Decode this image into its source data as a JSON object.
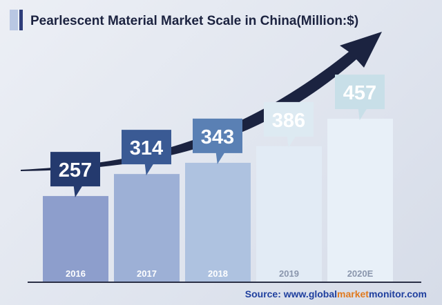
{
  "title": "Pearlescent Material Market Scale in China(Million:$)",
  "source": {
    "prefix": "Source: www.",
    "part1": "global",
    "part2": "market",
    "part3": "monitor",
    "suffix": ".com"
  },
  "colors": {
    "title": "#1c2340",
    "accent_bar": "#2e3d7a",
    "arrow": "#1b2340",
    "axis": "#2a2f45",
    "source_blue": "#1f3f9e",
    "source_orange": "#e07a1f"
  },
  "chart_data": {
    "type": "bar",
    "title": "Pearlescent Material Market Scale in China(Million:$)",
    "categories": [
      "2016",
      "2017",
      "2018",
      "2019",
      "2020E"
    ],
    "values": [
      257,
      314,
      343,
      386,
      457
    ],
    "bar_colors": [
      "#8d9ecc",
      "#9db0d6",
      "#aec2e0",
      "#e2ebf5",
      "#e8f0f8"
    ],
    "callout_colors": [
      "#243a6e",
      "#3a5a94",
      "#5a80b4",
      "#ddeaf2",
      "#c8dfe8"
    ],
    "category_label_colors": [
      "#ffffff",
      "#ffffff",
      "#ffffff",
      "#8a96ad",
      "#8a96ad"
    ],
    "trend": "upward arrow",
    "grid": false,
    "legend": "none"
  }
}
